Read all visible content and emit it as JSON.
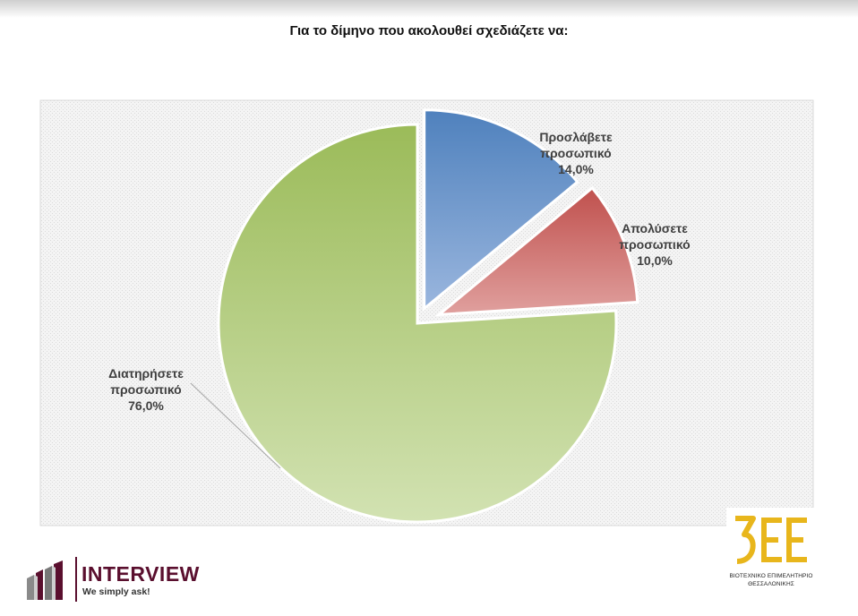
{
  "title": "Για το δίμηνο που ακολουθεί σχεδιάζετε να:",
  "chart_data": {
    "type": "pie",
    "title": "Για το δίμηνο που ακολουθεί σχεδιάζετε να:",
    "exploded": true,
    "grid": false,
    "legend": "none",
    "slices": [
      {
        "label_lines": [
          "Προσλάβετε",
          "προσωπικό"
        ],
        "value": 14.0,
        "value_label": "14,0%",
        "color": "#4f81bd"
      },
      {
        "label_lines": [
          "Απολύσετε",
          "προσωπικό"
        ],
        "value": 10.0,
        "value_label": "10,0%",
        "color": "#c0504d"
      },
      {
        "label_lines": [
          "Διατηρήσετε",
          "προσωπικό"
        ],
        "value": 76.0,
        "value_label": "76,0%",
        "color": "#9bbb59"
      }
    ]
  },
  "logos": {
    "interview": {
      "name": "INTERVIEW",
      "tagline": "We simply ask!",
      "color": "#5a0f2e"
    },
    "bee": {
      "mark": "ΒΕΕ",
      "caption_line1": "ΒΙΟΤΕΧΝΙΚΟ ΕΠΙΜΕΛΗΤΗΡΙΟ",
      "caption_line2": "ΘΕΣΣΑΛΟΝΙΚΗΣ",
      "color": "#e8b61c"
    }
  }
}
